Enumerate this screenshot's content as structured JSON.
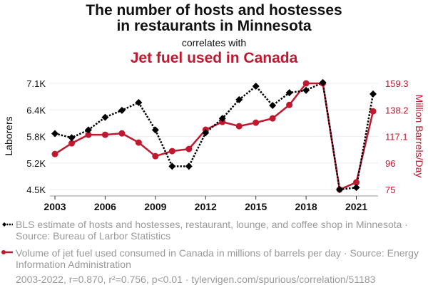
{
  "header": {
    "title_line1": "The number of hosts and hostesses",
    "title_line2": "in restaurants in Minnesota",
    "subtitle": "correlates with",
    "title2": "Jet fuel used in Canada"
  },
  "legend": {
    "series1": "BLS estimate of hosts and hostesses, restaurant, lounge, and coffee shop in Minnesota · Source: Bureau of Larbor Statistics",
    "series2": "Volume of jet fuel used consumed in Canada in millions of barrels per day · Source: Energy Information Administration"
  },
  "footer": "2003-2022, r=0.870, r²=0.756, p<0.01 · tylervigen.com/spurious/correlation/51183",
  "colors": {
    "series1": "#000000",
    "series2": "#c0182f",
    "grid": "#eeeeee"
  },
  "chart_data": {
    "type": "line",
    "title": "The number of hosts and hostesses in restaurants in Minnesota correlates with Jet fuel used in Canada",
    "x": [
      2003,
      2004,
      2005,
      2006,
      2007,
      2008,
      2009,
      2010,
      2011,
      2012,
      2013,
      2014,
      2015,
      2016,
      2017,
      2018,
      2019,
      2020,
      2021,
      2022
    ],
    "xticks": [
      2003,
      2006,
      2009,
      2012,
      2015,
      2018,
      2021
    ],
    "xlabel": "",
    "ylabel_left": "Laborers",
    "ylabel_right": "Million Barrels/Day",
    "yticks_left": [
      "7.1K",
      "6.4K",
      "5.8K",
      "5.2K",
      "4.5K"
    ],
    "yticks_right": [
      "159.3",
      "138.2",
      "117.1",
      "96",
      "75"
    ],
    "ylim_left": [
      4500,
      7100
    ],
    "ylim_right": [
      75,
      159.3
    ],
    "grid": true,
    "series": [
      {
        "name": "BLS estimate of hosts and hostesses, restaurant, lounge, and coffee shop in Minnesota",
        "axis": "left",
        "style": "dotted-diamond",
        "values": [
          5870,
          5770,
          5960,
          6270,
          6440,
          6630,
          5960,
          5070,
          5070,
          5890,
          6240,
          6700,
          7030,
          6560,
          6870,
          6930,
          7120,
          4500,
          4550,
          6840
        ]
      },
      {
        "name": "Volume of jet fuel used consumed in Canada in millions of barrels per day",
        "axis": "right",
        "style": "solid-circle",
        "values": [
          103.2,
          111.7,
          118.5,
          118.5,
          119.6,
          112.3,
          101.5,
          105.5,
          107.2,
          122.5,
          128.7,
          125.3,
          128.1,
          131.5,
          142.2,
          159.3,
          159.3,
          75,
          80.7,
          137.1
        ]
      }
    ]
  }
}
